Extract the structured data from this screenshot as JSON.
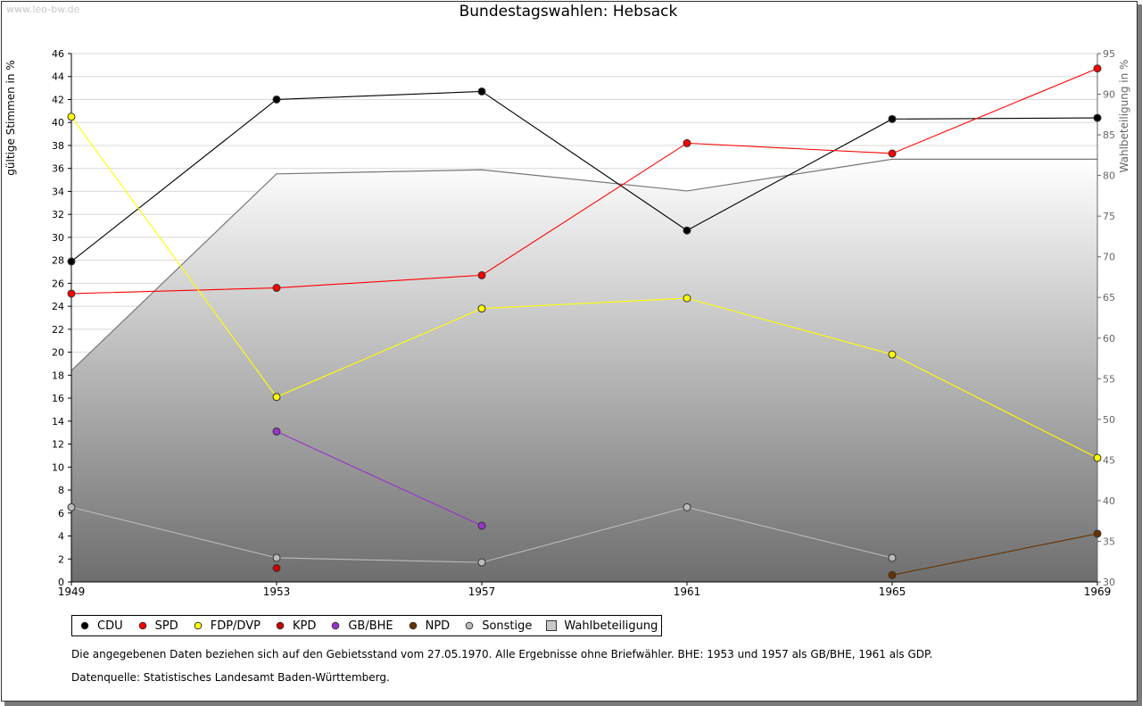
{
  "watermark": "www.leo-bw.de",
  "notes": {
    "gebietsstand": "Die angegebenen Daten beziehen sich auf den Gebietsstand vom 27.05.1970. Alle Ergebnisse ohne Briefwähler. BHE: 1953 und 1957 als GB/BHE, 1961 als GDP.",
    "quelle": "Datenquelle: Statistisches Landesamt Baden-Württemberg."
  },
  "chart_data": {
    "type": "line",
    "title": "Bundestagswahlen: Hebsack",
    "ylabel": "gültige Stimmen in %",
    "y2label": "Wahlbeteiligung in %",
    "categories": [
      "1949",
      "1953",
      "1957",
      "1961",
      "1965",
      "1969"
    ],
    "ylim": [
      0,
      46
    ],
    "yticks": [
      "0",
      "2",
      "4",
      "6",
      "8",
      "10",
      "12",
      "14",
      "16",
      "18",
      "20",
      "22",
      "24",
      "26",
      "28",
      "30",
      "32",
      "34",
      "36",
      "38",
      "40",
      "42",
      "44",
      "46"
    ],
    "y2lim": [
      30,
      95
    ],
    "y2ticks": [
      "30",
      "35",
      "40",
      "45",
      "50",
      "55",
      "60",
      "65",
      "70",
      "75",
      "80",
      "85",
      "90",
      "95"
    ],
    "grid": true,
    "legend_position": "bottom-left",
    "series": [
      {
        "name": "CDU",
        "color": "#000000",
        "values": [
          27.9,
          42.0,
          42.7,
          30.6,
          40.3,
          40.4
        ]
      },
      {
        "name": "SPD",
        "color": "#ff0000",
        "values": [
          25.1,
          25.6,
          26.7,
          38.2,
          37.3,
          44.7
        ]
      },
      {
        "name": "FDP/DVP",
        "color": "#ffff00",
        "values": [
          40.5,
          16.1,
          23.8,
          24.7,
          19.8,
          10.8
        ]
      },
      {
        "name": "KPD",
        "color": "#cc0000",
        "values": [
          null,
          1.2,
          null,
          null,
          null,
          null
        ]
      },
      {
        "name": "GB/BHE",
        "color": "#9933cc",
        "values": [
          null,
          13.1,
          4.9,
          null,
          null,
          null
        ]
      },
      {
        "name": "NPD",
        "color": "#663300",
        "values": [
          null,
          null,
          null,
          null,
          0.6,
          4.2
        ]
      },
      {
        "name": "Sonstige",
        "color": "#bbbbbb",
        "values": [
          6.5,
          2.1,
          1.7,
          6.5,
          2.1,
          null
        ]
      }
    ],
    "area_series": {
      "name": "Wahlbeteiligung",
      "axis": "right",
      "values": [
        56.0,
        80.2,
        80.7,
        78.1,
        82.0,
        82.0
      ]
    }
  }
}
